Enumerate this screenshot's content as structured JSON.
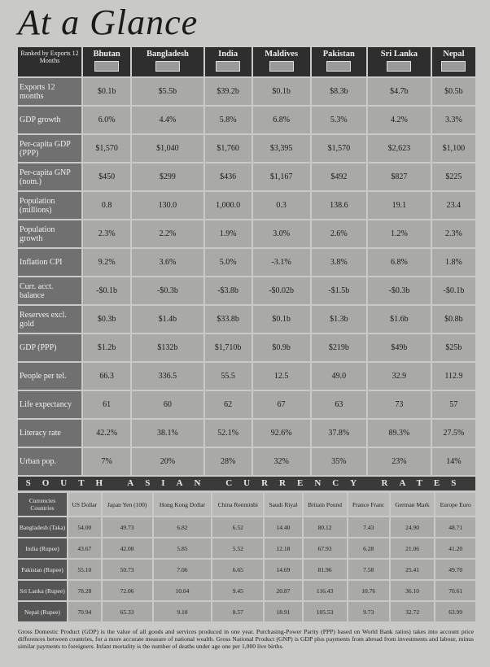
{
  "header": {
    "title": "At a Glance"
  },
  "table": {
    "corner": "Ranked by Exports 12 Months",
    "columns": [
      "Bhutan",
      "Bangladesh",
      "India",
      "Maldives",
      "Pakistan",
      "Sri Lanka",
      "Nepal"
    ],
    "rows": [
      [
        "Exports 12 months",
        "$0.1b",
        "$5.5b",
        "$39.2b",
        "$0.1b",
        "$8.3b",
        "$4.7b",
        "$0.5b"
      ],
      [
        "GDP growth",
        "6.0%",
        "4.4%",
        "5.8%",
        "6.8%",
        "5.3%",
        "4.2%",
        "3.3%"
      ],
      [
        "Per-capita GDP (PPP)",
        "$1,570",
        "$1,040",
        "$1,760",
        "$3,395",
        "$1,570",
        "$2,623",
        "$1,100"
      ],
      [
        "Per-capita GNP (nom.)",
        "$450",
        "$299",
        "$436",
        "$1,167",
        "$492",
        "$827",
        "$225"
      ],
      [
        "Population (millions)",
        "0.8",
        "130.0",
        "1,000.0",
        "0.3",
        "138.6",
        "19.1",
        "23.4"
      ],
      [
        "Population growth",
        "2.3%",
        "2.2%",
        "1.9%",
        "3.0%",
        "2.6%",
        "1.2%",
        "2.3%"
      ],
      [
        "Inflation CPI",
        "9.2%",
        "3.6%",
        "5.0%",
        "-3.1%",
        "3.8%",
        "6.8%",
        "1.8%"
      ],
      [
        "Curr. acct. balance",
        "-$0.1b",
        "-$0.3b",
        "-$3.8b",
        "-$0.02b",
        "-$1.5b",
        "-$0.3b",
        "-$0.1b"
      ],
      [
        "Reserves excl. gold",
        "$0.3b",
        "$1.4b",
        "$33.8b",
        "$0.1b",
        "$1.3b",
        "$1.6b",
        "$0.8b"
      ],
      [
        "GDP (PPP)",
        "$1.2b",
        "$132b",
        "$1,710b",
        "$0.9b",
        "$219b",
        "$49b",
        "$25b"
      ],
      [
        "People per tel.",
        "66.3",
        "336.5",
        "55.5",
        "12.5",
        "49.0",
        "32.9",
        "112.9"
      ],
      [
        "Life expectancy",
        "61",
        "60",
        "62",
        "67",
        "63",
        "73",
        "57"
      ],
      [
        "Literacy rate",
        "42.2%",
        "38.1%",
        "52.1%",
        "92.6%",
        "37.8%",
        "89.3%",
        "27.5%"
      ],
      [
        "Urban pop.",
        "7%",
        "20%",
        "28%",
        "32%",
        "35%",
        "23%",
        "14%"
      ]
    ]
  },
  "currency": {
    "title": "SOUTH ASIAN CURRENCY RATES",
    "corner": "Currencies Countries",
    "columns": [
      "US Dollar",
      "Japan Yen (100)",
      "Hong Kong Dollar",
      "China Renminbi",
      "Saudi Riyal",
      "Britain Pound",
      "France Franc",
      "German Mark",
      "Europe Euro"
    ],
    "rows": [
      [
        "Bangladesh (Taka)",
        "54.00",
        "49.73",
        "6.82",
        "6.52",
        "14.40",
        "80.12",
        "7.43",
        "24.90",
        "48.71"
      ],
      [
        "India (Rupee)",
        "43.67",
        "42.08",
        "5.85",
        "5.52",
        "12.18",
        "67.93",
        "6.28",
        "21.06",
        "41.20"
      ],
      [
        "Pakistan (Rupee)",
        "55.10",
        "50.73",
        "7.06",
        "6.65",
        "14.69",
        "81.96",
        "7.58",
        "25.41",
        "49.70"
      ],
      [
        "Sri Lanka (Rupee)",
        "78.28",
        "72.06",
        "10.04",
        "9.45",
        "20.87",
        "116.43",
        "10.76",
        "36.10",
        "70.61"
      ],
      [
        "Nepal (Rupee)",
        "70.94",
        "65.33",
        "9.10",
        "8.57",
        "18.91",
        "105.53",
        "9.73",
        "32.72",
        "63.99"
      ]
    ]
  },
  "footnote": "Gross Domestic Product (GDP) is the value of all goods and services produced in one year. Purchasing-Power Parity (PPP) based on World Bank ratios) takes into account price differences between countries, for a more accurate measure of national wealth. Gross National Product (GNP) is GDP plus payments from abroad from investments and labour, minus similar payments to foreigners. Infant mortality is the number of deaths under age one per 1,000 live births."
}
